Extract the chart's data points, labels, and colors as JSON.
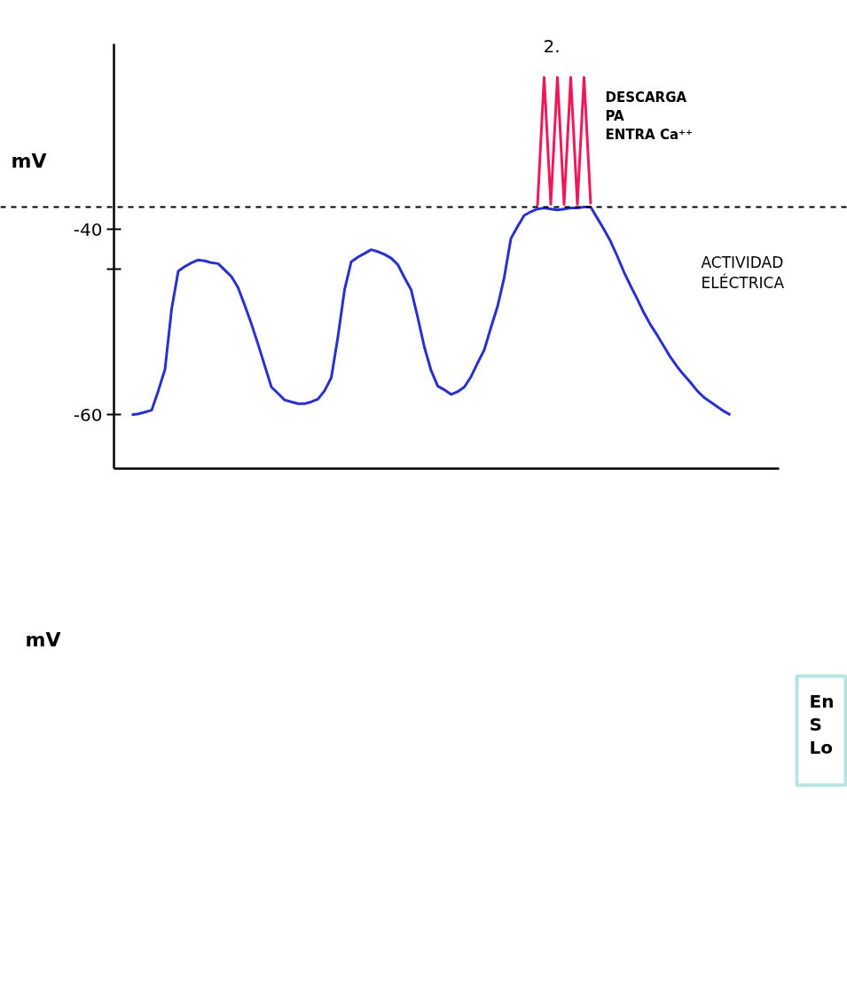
{
  "chart_data": {
    "type": "line",
    "ylabel": "mV",
    "categories": [
      null,
      null,
      null,
      null,
      null,
      null,
      null,
      null,
      null,
      null,
      null,
      null,
      null,
      null,
      null,
      null,
      null,
      null,
      null,
      null,
      null,
      null,
      null,
      null,
      null,
      null,
      null,
      null,
      null,
      null,
      null,
      null,
      null,
      null,
      null,
      null,
      null,
      null,
      null,
      null,
      null,
      null,
      null,
      null,
      null,
      null,
      null,
      null,
      null,
      null,
      null,
      null,
      null,
      null,
      null,
      null,
      null,
      null,
      null,
      null,
      null,
      null,
      null,
      null,
      null,
      null,
      null,
      null,
      null,
      null,
      null,
      null,
      null,
      null,
      null,
      null,
      null,
      null,
      null,
      null,
      null,
      null,
      null,
      null,
      null,
      null,
      null,
      null,
      null,
      null,
      null
    ],
    "ylim": [
      -65.8,
      -20
    ],
    "yticks": [
      -40,
      {
        "value": -44.3,
        "label": null
      },
      -60
    ],
    "tick_labels": "y",
    "grid": false,
    "series": [
      {
        "color": "#2a2fd0",
        "values": [
          -60,
          -59.9,
          -59.7,
          -59.5,
          -57.4,
          -55.1,
          -48.6,
          -44.5,
          -44.0,
          -43.6,
          -43.3,
          -43.4,
          -43.6,
          -43.7,
          -44.4,
          -45.1,
          -46.3,
          -48.2,
          -50.2,
          -52.4,
          -54.7,
          -57.0,
          -57.7,
          -58.4,
          -58.6,
          -58.8,
          -58.8,
          -58.6,
          -58.3,
          -57.4,
          -56.0,
          -51.6,
          -46.5,
          -43.5,
          -43.0,
          -42.6,
          -42.2,
          -42.4,
          -42.7,
          -43.1,
          -43.8,
          -45.2,
          -46.5,
          -49.5,
          -52.7,
          -55.2,
          -56.9,
          -57.3,
          -57.8,
          -57.5,
          -57.0,
          -55.9,
          -54.4,
          -53.0,
          -50.6,
          -48.3,
          -45.2,
          -41.0,
          -39.7,
          -38.5,
          -38.1,
          -37.8,
          -37.7,
          -37.8,
          -37.9,
          -37.8,
          -37.7,
          -37.7,
          -37.6,
          -37.6,
          -38.8,
          -40.0,
          -41.3,
          -42.9,
          -44.6,
          -46.1,
          -47.5,
          -49.0,
          -50.3,
          -51.4,
          -52.6,
          -53.8,
          -54.8,
          -55.7,
          -56.5,
          -57.4,
          -58.1,
          -58.6,
          -59.1,
          -59.6,
          -60
        ]
      },
      {
        "color": "#f0185a",
        "values": [
          null,
          null,
          null,
          null,
          null,
          null,
          null,
          null,
          null,
          null,
          null,
          null,
          null,
          null,
          null,
          null,
          null,
          null,
          null,
          null,
          null,
          null,
          null,
          null,
          null,
          null,
          null,
          null,
          null,
          null,
          null,
          null,
          null,
          null,
          null,
          null,
          null,
          null,
          null,
          null,
          null,
          null,
          null,
          null,
          null,
          null,
          null,
          null,
          null,
          null,
          null,
          null,
          null,
          null,
          null,
          null,
          null,
          null,
          null,
          null,
          null,
          -37.5,
          -23.6,
          -37.3,
          -23.6,
          -37.3,
          -23.6,
          -37.3,
          -23.6,
          -37.3,
          null,
          null,
          null,
          null,
          null,
          null,
          null,
          null,
          null,
          null,
          null,
          null,
          null,
          null,
          null,
          null,
          null,
          null,
          null,
          null,
          null
        ]
      }
    ],
    "ref_lines": [
      {
        "axis": "y",
        "value": -37.6,
        "label": null,
        "color": "#000000",
        "line_style": "dashed"
      }
    ],
    "annotations": [
      "2.",
      "DESCARGA\nPA\nENTRA Ca⁺⁺",
      "ACTIVIDAD\nELÉCTRICA",
      "mV",
      "En\nS\nLo"
    ]
  }
}
